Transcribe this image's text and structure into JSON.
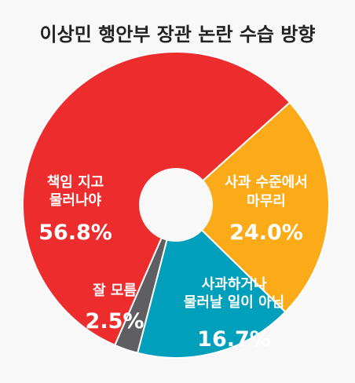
{
  "chart_data": {
    "type": "pie",
    "title": "이상민 행안부 장관 논란 수습 방향",
    "series": [
      {
        "values": [
          24.0,
          16.7,
          2.5,
          56.8
        ],
        "categories": [
          "사과 수준에서 마무리",
          "사과하거나 물러날 일이 아님",
          "잘 모름",
          "책임 지고 물러나야"
        ]
      }
    ],
    "slices": [
      {
        "label_lines": [
          "사과 수준에서",
          "마무리"
        ],
        "value": 24.0,
        "value_text": "24.0%",
        "color": "#fbab18"
      },
      {
        "label_lines": [
          "사과하거나",
          "물러날 일이 아님"
        ],
        "value": 16.7,
        "value_text": "16.7%",
        "color": "#009fbb"
      },
      {
        "label_lines": [
          "잘 모름"
        ],
        "value": 2.5,
        "value_text": "2.5%",
        "color": "#5f5f63"
      },
      {
        "label_lines": [
          "책임 지고",
          "물러나야"
        ],
        "value": 56.8,
        "value_text": "56.8%",
        "color": "#ed2c2e"
      }
    ],
    "start_angle_deg": 48,
    "hole": "donut",
    "legend": "none"
  }
}
